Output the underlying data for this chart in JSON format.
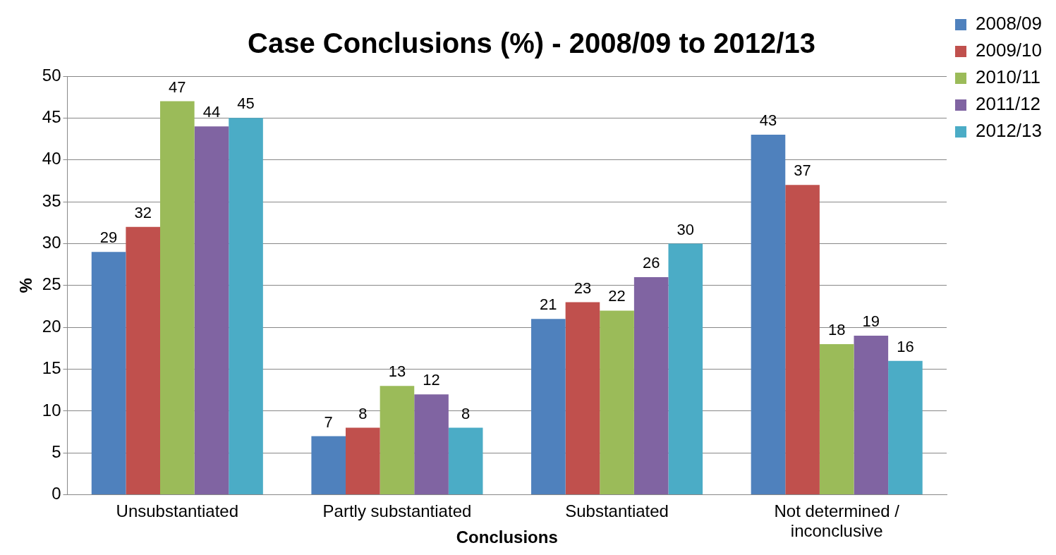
{
  "chart_data": {
    "type": "bar",
    "title": "Case Conclusions (%) - 2008/09 to 2012/13",
    "xlabel": "Conclusions",
    "ylabel": "%",
    "categories": [
      "Unsubstantiated",
      "Partly substantiated",
      "Substantiated",
      "Not determined / inconclusive"
    ],
    "series": [
      {
        "name": "2008/09",
        "color": "#4f81bd",
        "values": [
          29,
          7,
          21,
          43
        ]
      },
      {
        "name": "2009/10",
        "color": "#c0504d",
        "values": [
          32,
          8,
          23,
          37
        ]
      },
      {
        "name": "2010/11",
        "color": "#9bbb59",
        "values": [
          47,
          13,
          22,
          18
        ]
      },
      {
        "name": "2011/12",
        "color": "#8064a2",
        "values": [
          44,
          12,
          26,
          19
        ]
      },
      {
        "name": "2012/13",
        "color": "#4bacc6",
        "values": [
          45,
          8,
          30,
          16
        ]
      }
    ],
    "ylim": [
      0,
      50
    ],
    "yticks": [
      0,
      5,
      10,
      15,
      20,
      25,
      30,
      35,
      40,
      45,
      50
    ],
    "grid": "y",
    "legend": "right",
    "data_labels": true
  }
}
